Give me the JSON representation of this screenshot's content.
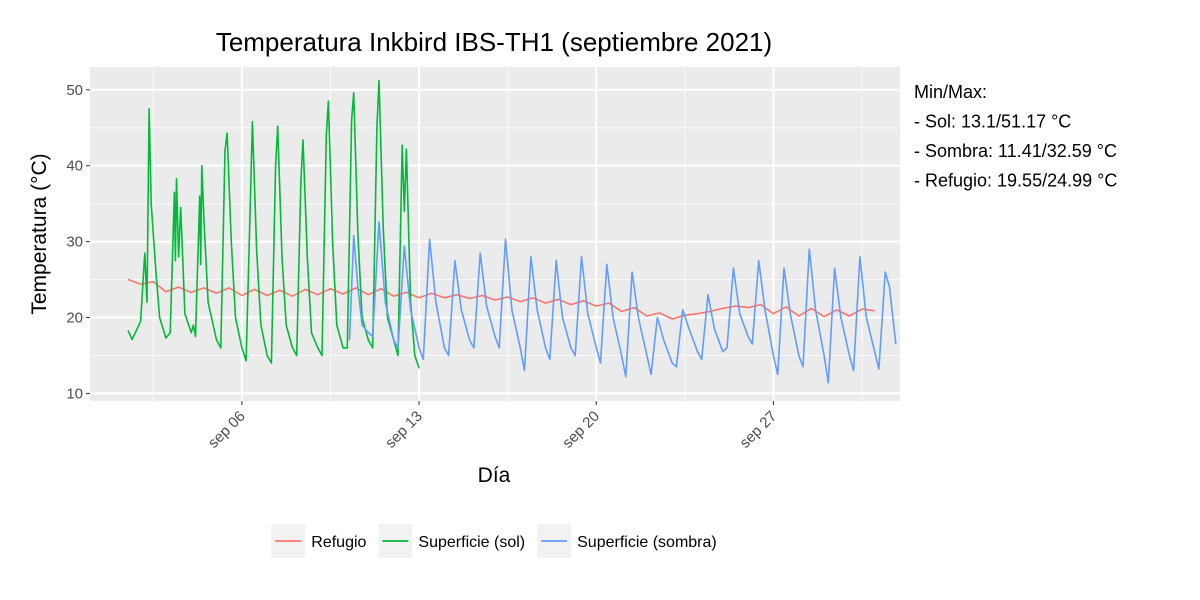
{
  "chart_data": {
    "type": "line",
    "title": "Temperatura Inkbird IBS-TH1 (septiembre 2021)",
    "xlabel": "Día",
    "ylabel": "Temperatura (°C)",
    "x_ticks": [
      {
        "date": "2021-09-06",
        "label": "sep 06"
      },
      {
        "date": "2021-09-13",
        "label": "sep 13"
      },
      {
        "date": "2021-09-20",
        "label": "sep 20"
      },
      {
        "date": "2021-09-27",
        "label": "sep 27"
      }
    ],
    "xlim": [
      "2021-08-31T00:00",
      "2021-10-02T00:00"
    ],
    "y_ticks": [
      10,
      20,
      30,
      40,
      50
    ],
    "ylim": [
      9.0,
      53.0
    ],
    "grid": true,
    "legend_position": "bottom",
    "series": [
      {
        "name": "Refugio",
        "color": "#F8766D",
        "points": [
          [
            "2021-09-01T12:00",
            25.0
          ],
          [
            "2021-09-02T00:00",
            24.4
          ],
          [
            "2021-09-02T12:00",
            24.7
          ],
          [
            "2021-09-03T00:00",
            23.4
          ],
          [
            "2021-09-03T12:00",
            24.0
          ],
          [
            "2021-09-04T00:00",
            23.3
          ],
          [
            "2021-09-04T12:00",
            23.9
          ],
          [
            "2021-09-05T00:00",
            23.2
          ],
          [
            "2021-09-05T12:00",
            23.9
          ],
          [
            "2021-09-06T00:00",
            22.9
          ],
          [
            "2021-09-06T12:00",
            23.7
          ],
          [
            "2021-09-07T00:00",
            22.9
          ],
          [
            "2021-09-07T12:00",
            23.6
          ],
          [
            "2021-09-08T00:00",
            22.8
          ],
          [
            "2021-09-08T12:00",
            23.7
          ],
          [
            "2021-09-09T00:00",
            23.0
          ],
          [
            "2021-09-09T12:00",
            23.8
          ],
          [
            "2021-09-10T00:00",
            23.1
          ],
          [
            "2021-09-10T12:00",
            23.9
          ],
          [
            "2021-09-11T00:00",
            23.0
          ],
          [
            "2021-09-11T12:00",
            23.8
          ],
          [
            "2021-09-12T00:00",
            22.8
          ],
          [
            "2021-09-12T12:00",
            23.3
          ],
          [
            "2021-09-13T00:00",
            22.6
          ],
          [
            "2021-09-13T12:00",
            23.2
          ],
          [
            "2021-09-14T00:00",
            22.6
          ],
          [
            "2021-09-14T12:00",
            23.0
          ],
          [
            "2021-09-15T00:00",
            22.5
          ],
          [
            "2021-09-15T12:00",
            22.9
          ],
          [
            "2021-09-16T00:00",
            22.3
          ],
          [
            "2021-09-16T12:00",
            22.7
          ],
          [
            "2021-09-17T00:00",
            22.1
          ],
          [
            "2021-09-17T12:00",
            22.6
          ],
          [
            "2021-09-18T00:00",
            21.9
          ],
          [
            "2021-09-18T12:00",
            22.4
          ],
          [
            "2021-09-19T00:00",
            21.7
          ],
          [
            "2021-09-19T12:00",
            22.2
          ],
          [
            "2021-09-20T00:00",
            21.5
          ],
          [
            "2021-09-20T12:00",
            21.9
          ],
          [
            "2021-09-21T00:00",
            20.8
          ],
          [
            "2021-09-21T12:00",
            21.3
          ],
          [
            "2021-09-22T00:00",
            20.2
          ],
          [
            "2021-09-22T12:00",
            20.6
          ],
          [
            "2021-09-23T00:00",
            19.8
          ],
          [
            "2021-09-23T12:00",
            20.3
          ],
          [
            "2021-09-24T00:00",
            20.5
          ],
          [
            "2021-09-24T12:00",
            20.8
          ],
          [
            "2021-09-25T00:00",
            21.2
          ],
          [
            "2021-09-25T12:00",
            21.5
          ],
          [
            "2021-09-26T00:00",
            21.3
          ],
          [
            "2021-09-26T12:00",
            21.7
          ],
          [
            "2021-09-27T00:00",
            20.5
          ],
          [
            "2021-09-27T12:00",
            21.4
          ],
          [
            "2021-09-28T00:00",
            20.2
          ],
          [
            "2021-09-28T12:00",
            21.2
          ],
          [
            "2021-09-29T00:00",
            20.1
          ],
          [
            "2021-09-29T12:00",
            21.0
          ],
          [
            "2021-09-30T00:00",
            20.2
          ],
          [
            "2021-09-30T12:00",
            21.1
          ],
          [
            "2021-10-01T00:00",
            20.9
          ]
        ]
      },
      {
        "name": "Superficie (sol)",
        "color": "#00BA38",
        "points": [
          [
            "2021-09-01T12:00",
            18.3
          ],
          [
            "2021-09-01T16:00",
            17.1
          ],
          [
            "2021-09-02T00:00",
            19.5
          ],
          [
            "2021-09-02T04:00",
            28.5
          ],
          [
            "2021-09-02T06:00",
            22.0
          ],
          [
            "2021-09-02T08:00",
            47.5
          ],
          [
            "2021-09-02T10:00",
            35.0
          ],
          [
            "2021-09-02T14:00",
            27.0
          ],
          [
            "2021-09-02T18:00",
            20.0
          ],
          [
            "2021-09-03T00:00",
            17.3
          ],
          [
            "2021-09-03T04:00",
            18.0
          ],
          [
            "2021-09-03T08:00",
            36.5
          ],
          [
            "2021-09-03T09:00",
            27.5
          ],
          [
            "2021-09-03T10:00",
            38.3
          ],
          [
            "2021-09-03T12:00",
            28.0
          ],
          [
            "2021-09-03T14:00",
            34.5
          ],
          [
            "2021-09-03T18:00",
            20.5
          ],
          [
            "2021-09-04T00:00",
            18.0
          ],
          [
            "2021-09-04T02:00",
            19.0
          ],
          [
            "2021-09-04T04:00",
            17.5
          ],
          [
            "2021-09-04T08:00",
            36.0
          ],
          [
            "2021-09-04T09:00",
            27.0
          ],
          [
            "2021-09-04T10:00",
            40.0
          ],
          [
            "2021-09-04T12:00",
            33.0
          ],
          [
            "2021-09-04T16:00",
            22.0
          ],
          [
            "2021-09-05T00:00",
            17.0
          ],
          [
            "2021-09-05T04:00",
            16.0
          ],
          [
            "2021-09-05T08:00",
            42.0
          ],
          [
            "2021-09-05T10:00",
            44.3
          ],
          [
            "2021-09-05T14:00",
            30.0
          ],
          [
            "2021-09-05T18:00",
            20.0
          ],
          [
            "2021-09-06T00:00",
            16.0
          ],
          [
            "2021-09-06T04:00",
            14.3
          ],
          [
            "2021-09-06T08:00",
            35.0
          ],
          [
            "2021-09-06T10:00",
            45.8
          ],
          [
            "2021-09-06T14:00",
            29.0
          ],
          [
            "2021-09-06T18:00",
            19.0
          ],
          [
            "2021-09-07T00:00",
            15.0
          ],
          [
            "2021-09-07T04:00",
            14.0
          ],
          [
            "2021-09-07T08:00",
            40.0
          ],
          [
            "2021-09-07T10:00",
            45.2
          ],
          [
            "2021-09-07T14:00",
            28.0
          ],
          [
            "2021-09-07T18:00",
            19.0
          ],
          [
            "2021-09-08T00:00",
            16.0
          ],
          [
            "2021-09-08T04:00",
            15.0
          ],
          [
            "2021-09-08T08:00",
            38.0
          ],
          [
            "2021-09-08T10:00",
            43.4
          ],
          [
            "2021-09-08T14:00",
            28.0
          ],
          [
            "2021-09-08T18:00",
            18.0
          ],
          [
            "2021-09-09T00:00",
            16.0
          ],
          [
            "2021-09-09T04:00",
            15.0
          ],
          [
            "2021-09-09T08:00",
            44.0
          ],
          [
            "2021-09-09T10:00",
            48.5
          ],
          [
            "2021-09-09T14:00",
            30.0
          ],
          [
            "2021-09-09T18:00",
            19.0
          ],
          [
            "2021-09-10T00:00",
            16.0
          ],
          [
            "2021-09-10T04:00",
            16.0
          ],
          [
            "2021-09-10T08:00",
            46.0
          ],
          [
            "2021-09-10T10:00",
            49.6
          ],
          [
            "2021-09-10T14:00",
            31.0
          ],
          [
            "2021-09-10T18:00",
            20.0
          ],
          [
            "2021-09-11T00:00",
            17.0
          ],
          [
            "2021-09-11T04:00",
            16.0
          ],
          [
            "2021-09-11T08:00",
            45.0
          ],
          [
            "2021-09-11T10:00",
            51.2
          ],
          [
            "2021-09-11T14:00",
            32.0
          ],
          [
            "2021-09-11T18:00",
            20.0
          ],
          [
            "2021-09-12T00:00",
            17.0
          ],
          [
            "2021-09-12T04:00",
            15.0
          ],
          [
            "2021-09-12T08:00",
            42.7
          ],
          [
            "2021-09-12T10:00",
            34.0
          ],
          [
            "2021-09-12T12:00",
            42.2
          ],
          [
            "2021-09-12T16:00",
            22.0
          ],
          [
            "2021-09-12T20:00",
            15.0
          ],
          [
            "2021-09-13T00:00",
            13.3
          ]
        ]
      },
      {
        "name": "Superficie (sombra)",
        "color": "#619CFF",
        "points": [
          [
            "2021-09-10T06:00",
            17.0
          ],
          [
            "2021-09-10T10:00",
            30.8
          ],
          [
            "2021-09-10T14:00",
            24.0
          ],
          [
            "2021-09-10T18:00",
            19.0
          ],
          [
            "2021-09-11T00:00",
            18.0
          ],
          [
            "2021-09-11T04:00",
            17.5
          ],
          [
            "2021-09-11T10:00",
            32.6
          ],
          [
            "2021-09-11T16:00",
            22.0
          ],
          [
            "2021-09-12T00:00",
            17.0
          ],
          [
            "2021-09-12T04:00",
            16.0
          ],
          [
            "2021-09-12T10:00",
            29.4
          ],
          [
            "2021-09-12T16:00",
            21.0
          ],
          [
            "2021-09-13T00:00",
            16.0
          ],
          [
            "2021-09-13T04:00",
            14.5
          ],
          [
            "2021-09-13T10:00",
            30.3
          ],
          [
            "2021-09-13T16:00",
            22.0
          ],
          [
            "2021-09-14T00:00",
            16.0
          ],
          [
            "2021-09-14T04:00",
            15.0
          ],
          [
            "2021-09-14T10:00",
            27.5
          ],
          [
            "2021-09-14T16:00",
            21.0
          ],
          [
            "2021-09-15T00:00",
            17.0
          ],
          [
            "2021-09-15T04:00",
            16.0
          ],
          [
            "2021-09-15T10:00",
            28.5
          ],
          [
            "2021-09-15T16:00",
            21.5
          ],
          [
            "2021-09-16T00:00",
            17.5
          ],
          [
            "2021-09-16T04:00",
            16.0
          ],
          [
            "2021-09-16T10:00",
            30.3
          ],
          [
            "2021-09-16T16:00",
            21.0
          ],
          [
            "2021-09-17T00:00",
            16.0
          ],
          [
            "2021-09-17T04:00",
            13.0
          ],
          [
            "2021-09-17T10:00",
            28.0
          ],
          [
            "2021-09-17T16:00",
            21.0
          ],
          [
            "2021-09-18T00:00",
            16.0
          ],
          [
            "2021-09-18T04:00",
            14.5
          ],
          [
            "2021-09-18T10:00",
            27.5
          ],
          [
            "2021-09-18T16:00",
            20.0
          ],
          [
            "2021-09-19T00:00",
            16.0
          ],
          [
            "2021-09-19T04:00",
            15.0
          ],
          [
            "2021-09-19T10:00",
            28.0
          ],
          [
            "2021-09-19T16:00",
            20.5
          ],
          [
            "2021-09-20T00:00",
            16.0
          ],
          [
            "2021-09-20T04:00",
            14.0
          ],
          [
            "2021-09-20T10:00",
            27.0
          ],
          [
            "2021-09-20T16:00",
            20.0
          ],
          [
            "2021-09-21T00:00",
            15.0
          ],
          [
            "2021-09-21T04:00",
            12.2
          ],
          [
            "2021-09-21T10:00",
            26.0
          ],
          [
            "2021-09-21T16:00",
            20.0
          ],
          [
            "2021-09-22T00:00",
            15.0
          ],
          [
            "2021-09-22T04:00",
            12.5
          ],
          [
            "2021-09-22T10:00",
            20.0
          ],
          [
            "2021-09-22T16:00",
            17.0
          ],
          [
            "2021-09-23T00:00",
            14.0
          ],
          [
            "2021-09-23T04:00",
            13.5
          ],
          [
            "2021-09-23T10:00",
            21.0
          ],
          [
            "2021-09-23T16:00",
            18.5
          ],
          [
            "2021-09-24T00:00",
            15.5
          ],
          [
            "2021-09-24T04:00",
            14.5
          ],
          [
            "2021-09-24T10:00",
            23.0
          ],
          [
            "2021-09-24T16:00",
            18.5
          ],
          [
            "2021-09-25T00:00",
            15.5
          ],
          [
            "2021-09-25T04:00",
            16.0
          ],
          [
            "2021-09-25T10:00",
            26.5
          ],
          [
            "2021-09-25T16:00",
            20.5
          ],
          [
            "2021-09-26T00:00",
            17.5
          ],
          [
            "2021-09-26T04:00",
            16.5
          ],
          [
            "2021-09-26T10:00",
            27.5
          ],
          [
            "2021-09-26T16:00",
            21.0
          ],
          [
            "2021-09-27T00:00",
            15.0
          ],
          [
            "2021-09-27T04:00",
            12.5
          ],
          [
            "2021-09-27T10:00",
            26.5
          ],
          [
            "2021-09-27T16:00",
            20.5
          ],
          [
            "2021-09-28T00:00",
            15.0
          ],
          [
            "2021-09-28T04:00",
            13.5
          ],
          [
            "2021-09-28T10:00",
            29.0
          ],
          [
            "2021-09-28T16:00",
            21.0
          ],
          [
            "2021-09-29T00:00",
            15.0
          ],
          [
            "2021-09-29T04:00",
            11.4
          ],
          [
            "2021-09-29T10:00",
            26.5
          ],
          [
            "2021-09-29T16:00",
            20.0
          ],
          [
            "2021-09-30T00:00",
            15.0
          ],
          [
            "2021-09-30T04:00",
            13.0
          ],
          [
            "2021-09-30T10:00",
            28.0
          ],
          [
            "2021-09-30T16:00",
            20.0
          ],
          [
            "2021-10-01T00:00",
            15.5
          ],
          [
            "2021-10-01T04:00",
            13.2
          ],
          [
            "2021-10-01T10:00",
            26.0
          ],
          [
            "2021-10-01T14:00",
            24.0
          ],
          [
            "2021-10-01T20:00",
            16.5
          ]
        ]
      }
    ],
    "legend": [
      {
        "name": "Refugio",
        "color": "#F8766D"
      },
      {
        "name": "Superficie (sol)",
        "color": "#00BA38"
      },
      {
        "name": "Superficie (sombra)",
        "color": "#619CFF"
      }
    ],
    "annotation": [
      "Min/Max:",
      "- Sol: 13.1/51.17 °C",
      "- Sombra: 11.41/32.59 °C",
      "- Refugio: 19.55/24.99 °C"
    ]
  }
}
